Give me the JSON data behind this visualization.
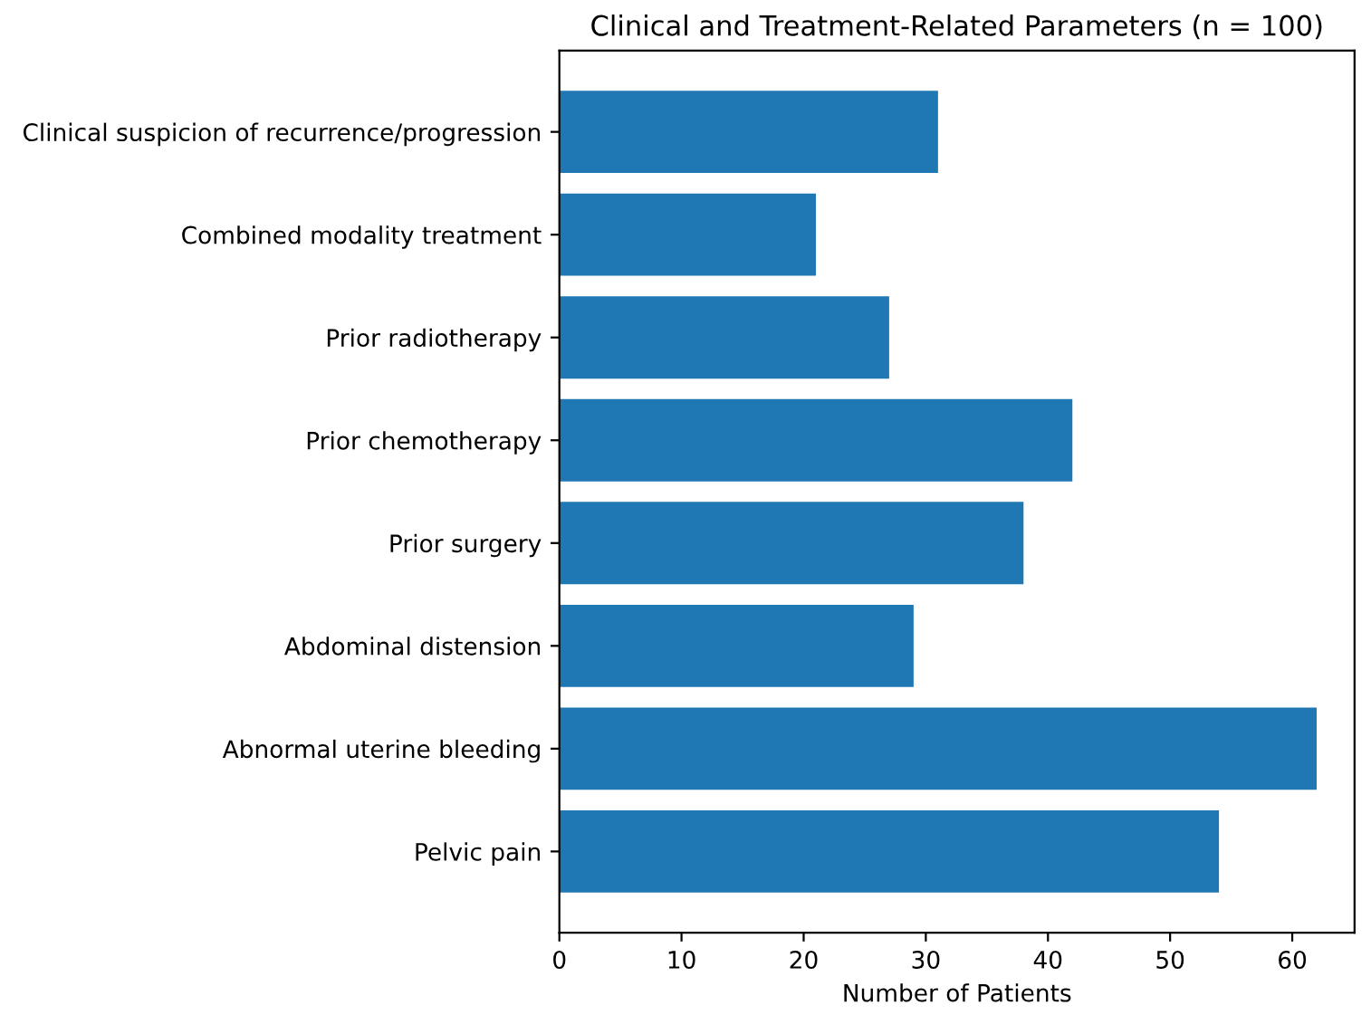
{
  "chart_data": {
    "type": "bar",
    "orientation": "horizontal",
    "title": "Clinical and Treatment-Related Parameters (n = 100)",
    "xlabel": "Number of Patients",
    "categories": [
      "Clinical suspicion of recurrence/progression",
      "Combined modality treatment",
      "Prior radiotherapy",
      "Prior chemotherapy",
      "Prior surgery",
      "Abdominal distension",
      "Abnormal uterine bleeding",
      "Pelvic pain"
    ],
    "values": [
      31,
      21,
      27,
      42,
      38,
      29,
      62,
      54
    ],
    "color": "#1f77b4",
    "xlim": [
      0,
      65.1
    ],
    "xticks": [
      0,
      10,
      20,
      30,
      40,
      50,
      60
    ],
    "grid": false
  }
}
